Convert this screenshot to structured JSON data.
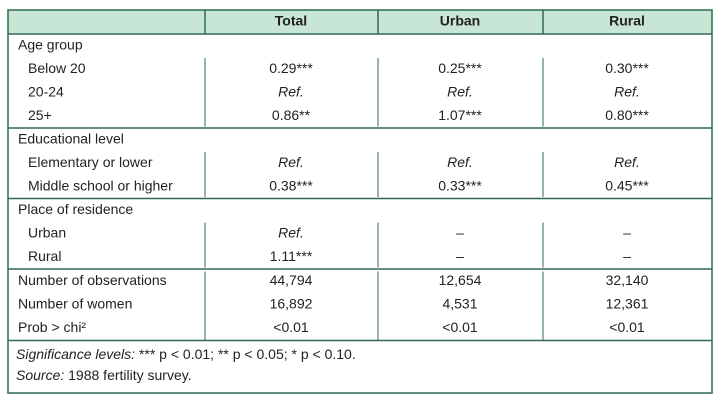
{
  "header": {
    "columns": [
      "Total",
      "Urban",
      "Rural"
    ]
  },
  "sections": [
    {
      "title": "Age group",
      "rows": [
        {
          "label": "Below 20",
          "cells": [
            "0.29***",
            "0.25***",
            "0.30***"
          ]
        },
        {
          "label": "20-24",
          "cells": [
            {
              "text": "Ref.",
              "style": "italic"
            },
            {
              "text": "Ref.",
              "style": "italic"
            },
            {
              "text": "Ref.",
              "style": "italic"
            }
          ]
        },
        {
          "label": "25+",
          "cells": [
            "0.86**",
            "1.07***",
            "0.80***"
          ]
        }
      ]
    },
    {
      "title": "Educational level",
      "rows": [
        {
          "label": "Elementary or lower",
          "cells": [
            {
              "text": "Ref.",
              "style": "italic"
            },
            {
              "text": "Ref.",
              "style": "italic"
            },
            {
              "text": "Ref.",
              "style": "italic"
            }
          ]
        },
        {
          "label": "Middle school or higher",
          "cells": [
            "0.38***",
            "0.33***",
            "0.45***"
          ]
        }
      ]
    },
    {
      "title": "Place of residence",
      "rows": [
        {
          "label": "Urban",
          "cells": [
            {
              "text": "Ref.",
              "style": "italic"
            },
            "–",
            "–"
          ]
        },
        {
          "label": "Rural",
          "cells": [
            "1.11***",
            "–",
            "–"
          ]
        }
      ]
    }
  ],
  "stats": [
    {
      "label": "Number of observations",
      "cells": [
        "44,794",
        "12,654",
        "32,140"
      ]
    },
    {
      "label": "Number of women",
      "cells": [
        "16,892",
        "4,531",
        "12,361"
      ]
    },
    {
      "label": "Prob > chi²",
      "cells": [
        "<0.01",
        "<0.01",
        "<0.01"
      ]
    }
  ],
  "notes": [
    {
      "label": "Significance levels:",
      "text": " *** p < 0.01; ** p < 0.05; * p < 0.10."
    },
    {
      "label": "Source:",
      "text": " 1988 fertility survey."
    }
  ]
}
